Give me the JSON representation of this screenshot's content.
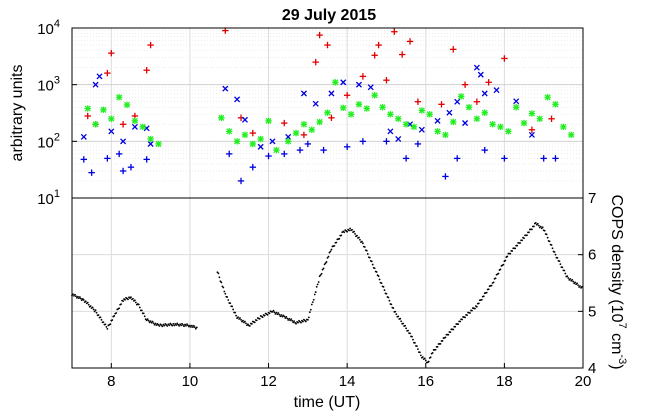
{
  "chart_data": [
    {
      "type": "scatter",
      "title": "29 July 2015",
      "ylabel": "arbitrary units",
      "yscale": "log",
      "ylim": [
        10,
        10000
      ],
      "xlim": [
        7,
        20
      ],
      "yticks": [
        "10",
        "10",
        "10",
        "10"
      ],
      "ytick_exp": [
        "1",
        "2",
        "3",
        "4"
      ],
      "grid": true,
      "series": [
        {
          "marker": "+",
          "color": "#e00000",
          "points": [
            [
              7.4,
              280
            ],
            [
              7.6,
              200
            ],
            [
              7.9,
              1600
            ],
            [
              8.0,
              3600
            ],
            [
              8.3,
              200
            ],
            [
              8.6,
              280
            ],
            [
              8.9,
              1800
            ],
            [
              9.0,
              5000
            ],
            [
              10.9,
              9000
            ],
            [
              11.3,
              260
            ],
            [
              11.6,
              140
            ],
            [
              12.4,
              210
            ],
            [
              12.9,
              130
            ],
            [
              13.2,
              2500
            ],
            [
              13.3,
              7500
            ],
            [
              13.5,
              5000
            ],
            [
              13.6,
              260
            ],
            [
              14.0,
              650
            ],
            [
              14.4,
              1400
            ],
            [
              14.7,
              3300
            ],
            [
              14.8,
              5000
            ],
            [
              15.0,
              1200
            ],
            [
              15.2,
              8600
            ],
            [
              15.4,
              3400
            ],
            [
              15.6,
              5800
            ],
            [
              15.8,
              500
            ],
            [
              16.4,
              450
            ],
            [
              16.7,
              4200
            ],
            [
              17.0,
              1000
            ],
            [
              17.3,
              500
            ],
            [
              17.6,
              1100
            ],
            [
              18.0,
              2900
            ],
            [
              18.7,
              160
            ],
            [
              19.2,
              250
            ]
          ]
        },
        {
          "marker": "x",
          "color": "#0000dd",
          "points": [
            [
              7.3,
              120
            ],
            [
              7.6,
              1000
            ],
            [
              7.7,
              1400
            ],
            [
              8.0,
              150
            ],
            [
              8.3,
              100
            ],
            [
              8.6,
              180
            ],
            [
              8.9,
              170
            ],
            [
              9.0,
              90
            ],
            [
              10.9,
              850
            ],
            [
              11.2,
              550
            ],
            [
              11.4,
              240
            ],
            [
              11.8,
              80
            ],
            [
              12.1,
              100
            ],
            [
              12.5,
              120
            ],
            [
              12.9,
              700
            ],
            [
              13.2,
              460
            ],
            [
              13.6,
              700
            ],
            [
              13.9,
              1100
            ],
            [
              14.3,
              1000
            ],
            [
              14.6,
              900
            ],
            [
              15.1,
              150
            ],
            [
              15.3,
              110
            ],
            [
              15.6,
              200
            ],
            [
              15.9,
              160
            ],
            [
              16.3,
              230
            ],
            [
              16.6,
              320
            ],
            [
              16.8,
              500
            ],
            [
              17.0,
              210
            ],
            [
              17.3,
              2000
            ],
            [
              17.4,
              1500
            ],
            [
              17.5,
              700
            ],
            [
              17.8,
              800
            ],
            [
              18.3,
              510
            ],
            [
              18.7,
              130
            ]
          ]
        },
        {
          "marker": "+",
          "color": "#0000dd",
          "points": [
            [
              7.3,
              48
            ],
            [
              7.5,
              28
            ],
            [
              7.9,
              50
            ],
            [
              8.2,
              60
            ],
            [
              8.3,
              30
            ],
            [
              8.5,
              35
            ],
            [
              8.9,
              48
            ],
            [
              11.0,
              60
            ],
            [
              11.3,
              20
            ],
            [
              11.6,
              35
            ],
            [
              12.0,
              55
            ],
            [
              12.4,
              60
            ],
            [
              12.8,
              70
            ],
            [
              13.0,
              90
            ],
            [
              13.4,
              70
            ],
            [
              14.0,
              80
            ],
            [
              14.4,
              100
            ],
            [
              15.0,
              100
            ],
            [
              15.5,
              50
            ],
            [
              15.8,
              90
            ],
            [
              16.5,
              24
            ],
            [
              16.8,
              50
            ],
            [
              17.5,
              70
            ],
            [
              18.0,
              50
            ],
            [
              19.0,
              50
            ],
            [
              19.3,
              50
            ]
          ]
        },
        {
          "marker": "*",
          "color": "#22ee22",
          "points": [
            [
              7.4,
              380
            ],
            [
              7.6,
              200
            ],
            [
              7.8,
              360
            ],
            [
              8.0,
              250
            ],
            [
              8.2,
              600
            ],
            [
              8.4,
              440
            ],
            [
              8.6,
              230
            ],
            [
              8.8,
              180
            ],
            [
              9.0,
              110
            ],
            [
              9.2,
              90
            ],
            [
              10.8,
              260
            ],
            [
              11.0,
              150
            ],
            [
              11.2,
              100
            ],
            [
              11.4,
              130
            ],
            [
              11.6,
              90
            ],
            [
              11.8,
              110
            ],
            [
              12.0,
              230
            ],
            [
              12.2,
              70
            ],
            [
              12.5,
              100
            ],
            [
              12.7,
              140
            ],
            [
              12.9,
              200
            ],
            [
              13.1,
              160
            ],
            [
              13.3,
              220
            ],
            [
              13.5,
              320
            ],
            [
              13.7,
              1100
            ],
            [
              13.9,
              390
            ],
            [
              14.1,
              300
            ],
            [
              14.3,
              450
            ],
            [
              14.5,
              380
            ],
            [
              14.7,
              650
            ],
            [
              14.9,
              400
            ],
            [
              15.1,
              300
            ],
            [
              15.3,
              250
            ],
            [
              15.5,
              200
            ],
            [
              15.7,
              180
            ],
            [
              15.9,
              350
            ],
            [
              16.1,
              300
            ],
            [
              16.3,
              150
            ],
            [
              16.5,
              130
            ],
            [
              16.7,
              220
            ],
            [
              16.9,
              620
            ],
            [
              17.1,
              400
            ],
            [
              17.3,
              250
            ],
            [
              17.5,
              320
            ],
            [
              17.7,
              200
            ],
            [
              17.9,
              180
            ],
            [
              18.1,
              150
            ],
            [
              18.3,
              400
            ],
            [
              18.5,
              210
            ],
            [
              18.7,
              310
            ],
            [
              18.9,
              250
            ],
            [
              19.1,
              600
            ],
            [
              19.3,
              450
            ],
            [
              19.5,
              180
            ],
            [
              19.7,
              130
            ]
          ]
        }
      ]
    },
    {
      "type": "line",
      "ylabel": "COPS density (10",
      "ylabel_exp": "7",
      "ylabel_unit": "cm",
      "ylabel_unit_exp": "-3",
      "ylabel_close": ")",
      "xlabel": "time (UT)",
      "xlim": [
        7,
        20
      ],
      "ylim": [
        4,
        7
      ],
      "xticks": [
        "8",
        "10",
        "12",
        "14",
        "16",
        "18",
        "20"
      ],
      "yticks": [
        "4",
        "5",
        "6",
        "7"
      ],
      "grid": true,
      "series": [
        {
          "color": "#000000",
          "points": [
            [
              7.0,
              5.3
            ],
            [
              7.3,
              5.2
            ],
            [
              7.6,
              5.0
            ],
            [
              7.9,
              4.7
            ],
            [
              8.1,
              4.95
            ],
            [
              8.3,
              5.2
            ],
            [
              8.5,
              5.25
            ],
            [
              8.7,
              5.1
            ],
            [
              8.9,
              4.85
            ],
            [
              9.2,
              4.75
            ],
            [
              9.6,
              4.77
            ],
            [
              10.0,
              4.75
            ],
            [
              10.2,
              4.7
            ],
            [
              10.7,
              5.7
            ],
            [
              10.9,
              5.3
            ],
            [
              11.2,
              4.9
            ],
            [
              11.5,
              4.75
            ],
            [
              11.8,
              4.9
            ],
            [
              12.1,
              5.0
            ],
            [
              12.4,
              4.9
            ],
            [
              12.7,
              4.8
            ],
            [
              13.0,
              4.85
            ],
            [
              13.3,
              5.6
            ],
            [
              13.6,
              6.1
            ],
            [
              13.9,
              6.4
            ],
            [
              14.1,
              6.45
            ],
            [
              14.4,
              6.2
            ],
            [
              14.8,
              5.6
            ],
            [
              15.2,
              5.0
            ],
            [
              15.6,
              4.6
            ],
            [
              15.9,
              4.2
            ],
            [
              16.05,
              4.1
            ],
            [
              16.2,
              4.3
            ],
            [
              16.5,
              4.55
            ],
            [
              16.9,
              4.85
            ],
            [
              17.3,
              5.1
            ],
            [
              17.7,
              5.5
            ],
            [
              18.1,
              6.0
            ],
            [
              18.5,
              6.3
            ],
            [
              18.8,
              6.55
            ],
            [
              19.0,
              6.45
            ],
            [
              19.3,
              6.0
            ],
            [
              19.6,
              5.6
            ],
            [
              20.0,
              5.4
            ]
          ]
        }
      ]
    }
  ]
}
